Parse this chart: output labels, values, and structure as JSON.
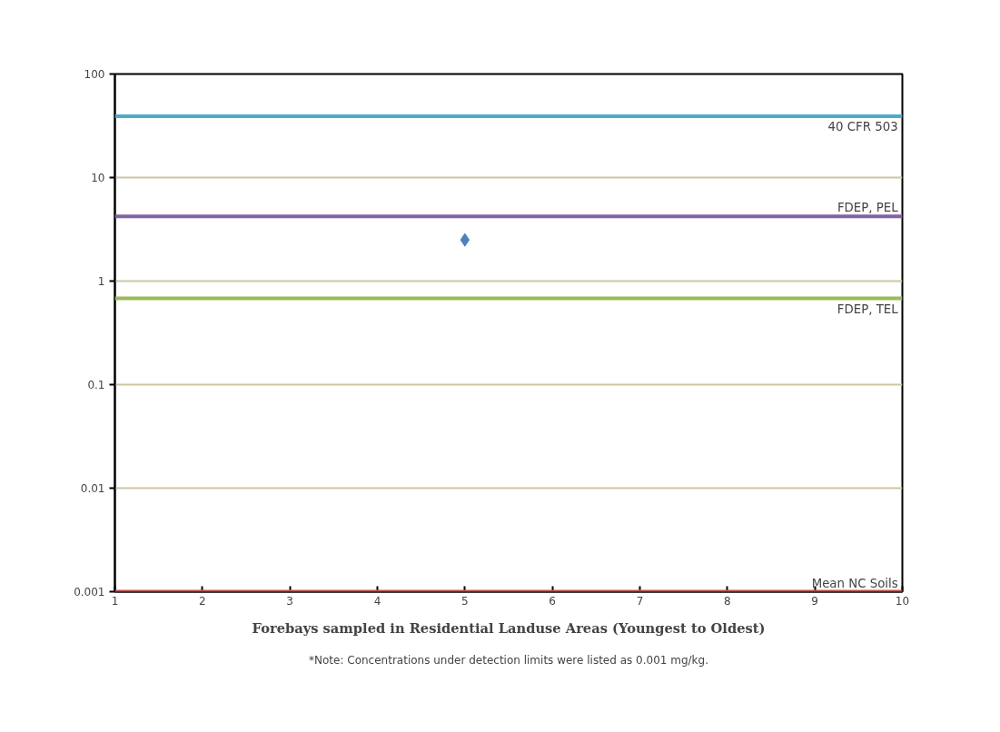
{
  "chart_data": {
    "type": "scatter",
    "xlabel": "Forebays sampled in Residential Landuse Areas (Youngest to Oldest)",
    "x": [
      5
    ],
    "series": [
      {
        "color": "#4f81bd",
        "values": [
          2.5
        ]
      }
    ],
    "marker": "diamond",
    "log": "y",
    "xlim": [
      1,
      10
    ],
    "xticks": [
      1,
      2,
      3,
      4,
      5,
      6,
      7,
      8,
      9,
      10
    ],
    "ylim": [
      0.001,
      100
    ],
    "yticks": [
      0.001,
      0.01,
      0.1,
      1,
      10,
      100
    ],
    "grid": "y",
    "ref_lines": [
      {
        "axis": "y",
        "value": 39,
        "label": "40 CFR 503",
        "color": "#4bacc6"
      },
      {
        "axis": "y",
        "value": 4.21,
        "label": "FDEP, PEL",
        "color": "#8064a2"
      },
      {
        "axis": "y",
        "value": 0.68,
        "label": "FDEP, TEL",
        "color": "#9bbb59"
      },
      {
        "axis": "y",
        "value": 0.001,
        "label": "Mean NC Soils",
        "color": "#c0504d"
      }
    ],
    "annotations": [
      "*Note: Concentrations under detection limits were listed as 0.001 mg/kg."
    ]
  }
}
